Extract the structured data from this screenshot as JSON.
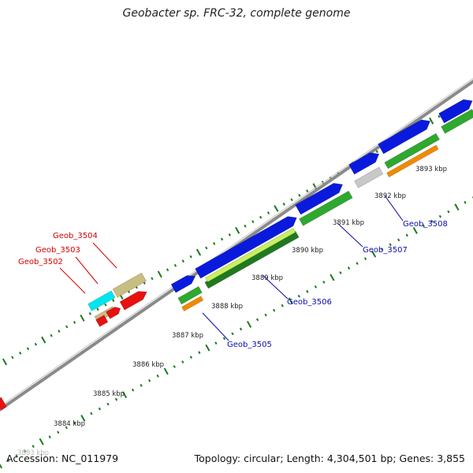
{
  "map_title": "Geobacter sp. FRC-32, complete genome",
  "accession_text": "Accession: NC_011979",
  "summary_text": "Topology: circular; Length: 4,304,501 bp; Genes: 3,855",
  "faded_tick_label": "3883 kbp",
  "colors": {
    "backbone": "#8a8a8a",
    "tick": "#1a7a1a",
    "cds_forward": "#0a1adc",
    "cds_reverse": "#2ea82e",
    "cds_reverse_dark": "#1f7a1f",
    "trna": "#c9bd82",
    "rrna": "#00e5ef",
    "highlight": "#e81010",
    "misc": "#f08a00",
    "gray_feature": "#c8c8c8",
    "label_red": "#d40000",
    "label_blue": "#0a0ab0"
  },
  "tick_labels": [
    "3884 kbp",
    "3885 kbp",
    "3886 kbp",
    "3887 kbp",
    "3888 kbp",
    "3889 kbp",
    "3890 kbp",
    "3891 kbp",
    "3892 kbp",
    "3893 kbp"
  ],
  "gene_labels_red": [
    "Geob_3504",
    "Geob_3503",
    "Geob_3502"
  ],
  "gene_labels_blue": [
    "Geob_3505",
    "Geob_3506",
    "Geob_3507",
    "Geob_3508"
  ]
}
